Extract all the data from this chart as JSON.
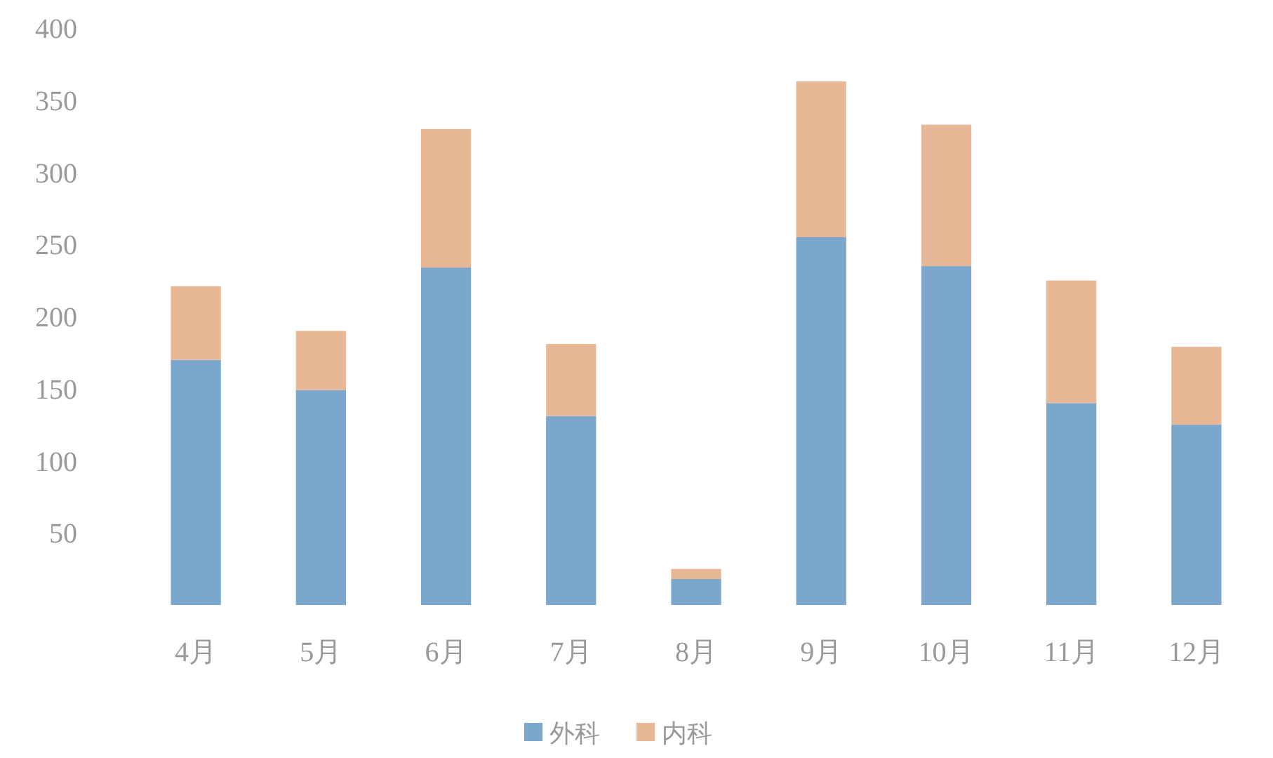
{
  "chart_data": {
    "type": "bar",
    "stacked": true,
    "categories": [
      "4月",
      "5月",
      "6月",
      "7月",
      "8月",
      "9月",
      "10月",
      "11月",
      "12月"
    ],
    "series": [
      {
        "name": "外科",
        "color": "#7ba7cc",
        "values": [
          170,
          149,
          234,
          131,
          18,
          255,
          235,
          140,
          125
        ]
      },
      {
        "name": "内科",
        "color": "#e8b896",
        "values": [
          51,
          41,
          96,
          50,
          7,
          108,
          98,
          85,
          54
        ]
      }
    ],
    "ylim": [
      0,
      400
    ],
    "yticks": [
      50,
      100,
      150,
      200,
      250,
      300,
      350,
      400
    ],
    "grid": false,
    "legend": "bottom"
  }
}
